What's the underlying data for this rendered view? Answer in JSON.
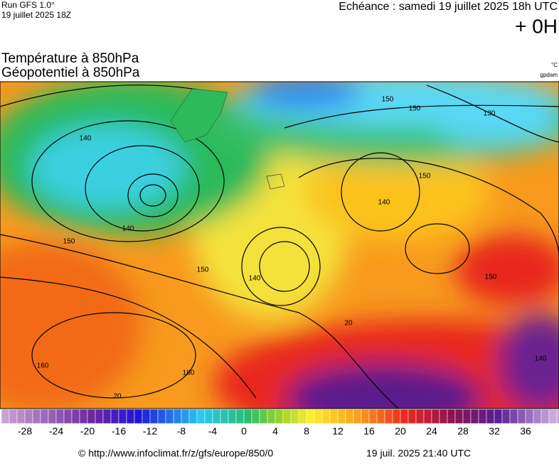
{
  "header": {
    "run": "Run GFS 1.0°",
    "date": "19 juillet 2025 18Z",
    "echeance": "Echéance : samedi 19 juillet 2025 18h UTC",
    "offset": "+ 0H",
    "title1": "Température à 850hPa",
    "title2": "Géopotentiel à 850hPa",
    "unit1": "°C",
    "unit2": "gpdam"
  },
  "map": {
    "contour_labels": [
      "140",
      "140",
      "150",
      "150",
      "140",
      "150",
      "160",
      "160",
      "140",
      "150",
      "150",
      "20",
      "20",
      "130",
      "140",
      "150"
    ]
  },
  "colorbar": {
    "ticks": [
      -28,
      -24,
      -20,
      -16,
      -12,
      -8,
      -4,
      0,
      4,
      8,
      12,
      16,
      20,
      24,
      28,
      32,
      36
    ]
  },
  "footer": {
    "url": "© http://www.infoclimat.fr/z/gfs/europe/850/0",
    "generated": "19 juil. 2025 21:40 UTC"
  }
}
